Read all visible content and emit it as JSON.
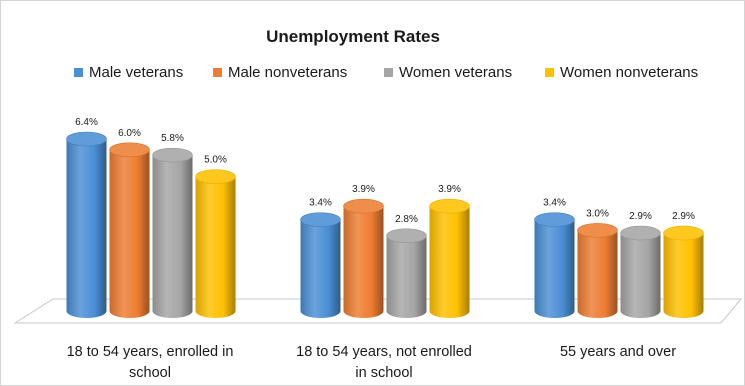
{
  "chart_data": {
    "type": "bar",
    "title": "Unemployment Rates",
    "xlabel": "",
    "ylabel": "",
    "categories": [
      [
        "18 to 54 years, enrolled in",
        "school"
      ],
      [
        "18 to 54 years, not enrolled",
        "in school"
      ],
      [
        "55 years and over"
      ]
    ],
    "series": [
      {
        "name": "Male veterans",
        "color": "#4a8ed4",
        "values": [
          6.4,
          3.4,
          3.4
        ],
        "labels": [
          "6.4%",
          "3.4%",
          "3.4%"
        ]
      },
      {
        "name": "Male nonveterans",
        "color": "#ed7d31",
        "values": [
          6.0,
          3.9,
          3.0
        ],
        "labels": [
          "6.0%",
          "3.9%",
          "3.0%"
        ]
      },
      {
        "name": "Women veterans",
        "color": "#a5a5a5",
        "values": [
          5.8,
          2.8,
          2.9
        ],
        "labels": [
          "5.8%",
          "2.8%",
          "2.9%"
        ]
      },
      {
        "name": "Women nonveterans",
        "color": "#ffc000",
        "values": [
          5.0,
          3.9,
          2.9
        ],
        "labels": [
          "5.0%",
          "3.9%",
          "2.9%"
        ]
      }
    ],
    "value_suffix": "%",
    "style": "3d-cylinder",
    "legend_position": "top",
    "grid": false,
    "ylim": [
      0,
      6.4
    ]
  }
}
